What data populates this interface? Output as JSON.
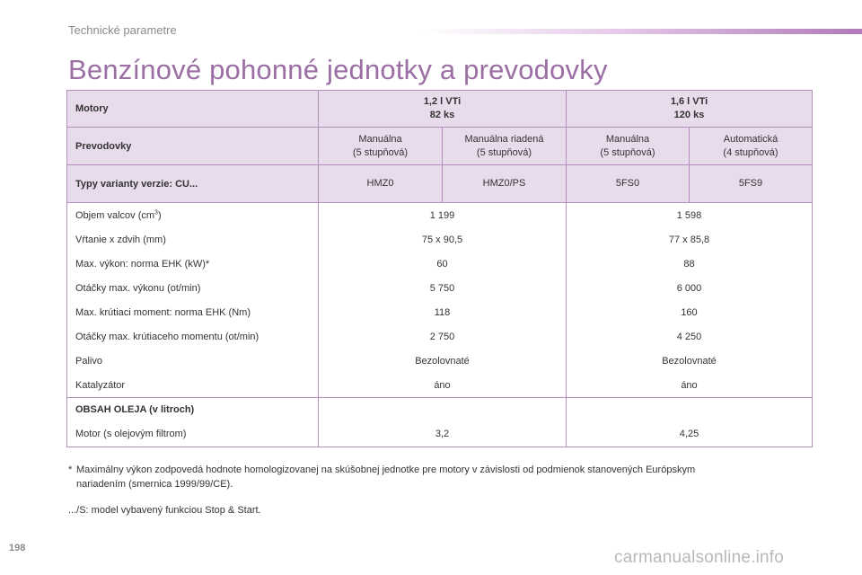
{
  "header": {
    "section": "Technické parametre"
  },
  "title": "Benzínové pohonné jednotky a prevodovky",
  "table": {
    "motory_label": "Motory",
    "engines": [
      {
        "line1": "1,2 l VTi",
        "line2": "82 ks"
      },
      {
        "line1": "1,6 l VTi",
        "line2": "120 ks"
      }
    ],
    "prevodovky_label": "Prevodovky",
    "gearboxes": [
      {
        "line1": "Manuálna",
        "line2": "(5 stupňová)"
      },
      {
        "line1": "Manuálna riadená",
        "line2": "(5 stupňová)"
      },
      {
        "line1": "Manuálna",
        "line2": "(5 stupňová)"
      },
      {
        "line1": "Automatická",
        "line2": "(4 stupňová)"
      }
    ],
    "typy_label": "Typy varianty verzie: CU...",
    "types": [
      "HMZ0",
      "HMZ0/PS",
      "5FS0",
      "5FS9"
    ],
    "rows": [
      {
        "label": "Objem valcov (cm",
        "sup": "3",
        "label_end": ")",
        "v1": "1 199",
        "v2": "1 598"
      },
      {
        "label": "Vŕtanie x zdvih (mm)",
        "v1": "75 x 90,5",
        "v2": "77 x 85,8"
      },
      {
        "label": "Max. výkon: norma EHK (kW)*",
        "v1": "60",
        "v2": "88"
      },
      {
        "label": "Otáčky max. výkonu (ot/min)",
        "v1": "5 750",
        "v2": "6 000"
      },
      {
        "label": "Max. krútiaci moment: norma EHK (Nm)",
        "v1": "118",
        "v2": "160"
      },
      {
        "label": "Otáčky max. krútiaceho momentu (ot/min)",
        "v1": "2 750",
        "v2": "4 250"
      },
      {
        "label": "Palivo",
        "v1": "Bezolovnaté",
        "v2": "Bezolovnaté"
      },
      {
        "label": "Katalyzátor",
        "v1": "áno",
        "v2": "áno"
      }
    ],
    "oil_label": "OBSAH OLEJA (v litroch)",
    "oil_row": {
      "label": "Motor (s olejovým filtrom)",
      "v1": "3,2",
      "v2": "4,25"
    }
  },
  "footnote": {
    "star": "*",
    "text_line1": "Maximálny výkon zodpovedá hodnote homologizovanej na skúšobnej jednotke pre motory v závislosti od podmienok stanovených Európskym",
    "text_line2": "nariadením (smernica 1999/99/CE)."
  },
  "footnote2": ".../S: model vybavený funkciou Stop & Start.",
  "page_number": "198",
  "watermark": "carmanualsonline.info"
}
